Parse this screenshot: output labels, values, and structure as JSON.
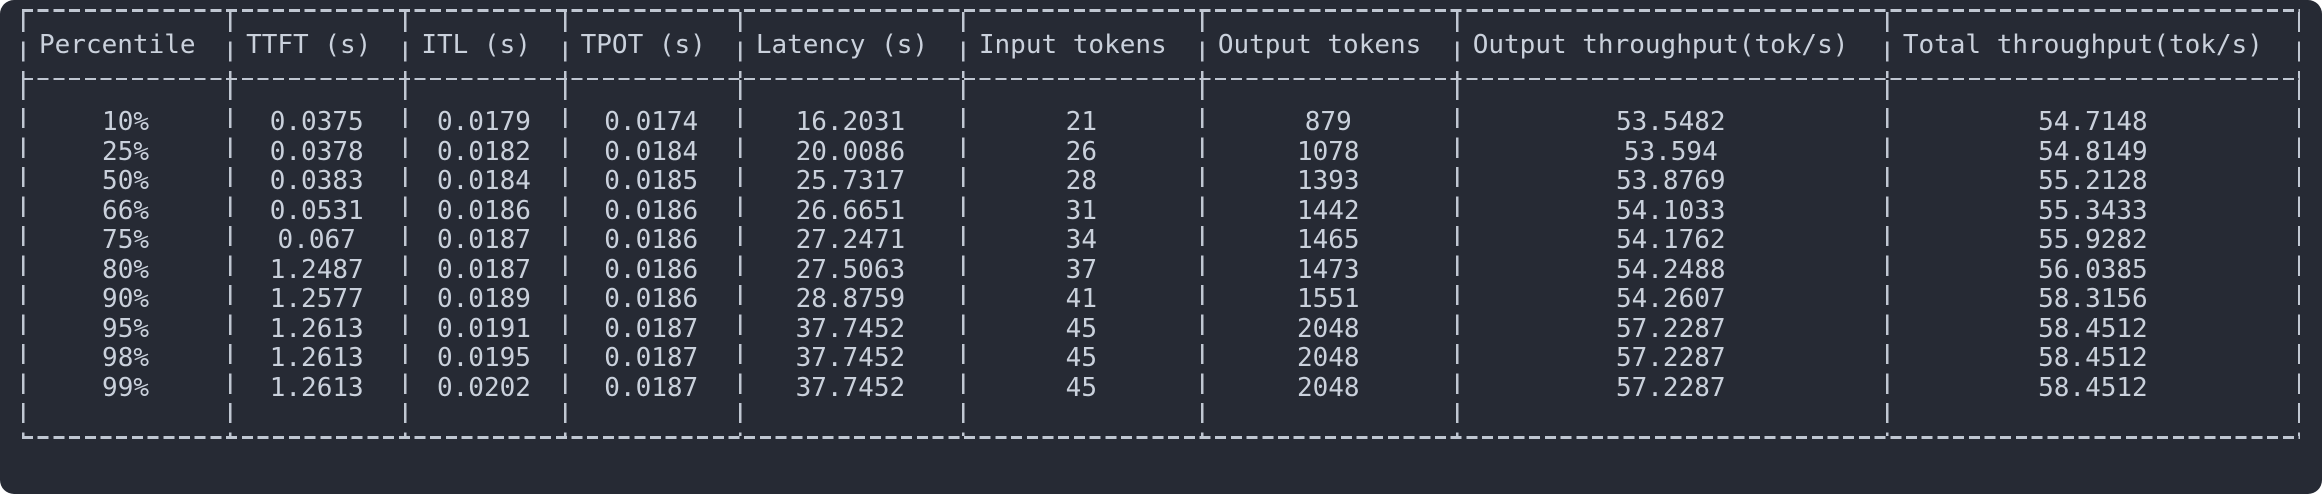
{
  "window": {
    "background_color": "#262a34",
    "line_color": "#c0c7d2",
    "text_color": "#cad1dc"
  },
  "table": {
    "columns": [
      "Percentile",
      "TTFT (s)",
      "ITL (s)",
      "TPOT (s)",
      "Latency (s)",
      "Input tokens",
      "Output tokens",
      "Output throughput(tok/s)",
      "Total throughput(tok/s)"
    ],
    "rows": [
      [
        "10%",
        "0.0375",
        "0.0179",
        "0.0174",
        "16.2031",
        "21",
        "879",
        "53.5482",
        "54.7148"
      ],
      [
        "25%",
        "0.0378",
        "0.0182",
        "0.0184",
        "20.0086",
        "26",
        "1078",
        "53.594",
        "54.8149"
      ],
      [
        "50%",
        "0.0383",
        "0.0184",
        "0.0185",
        "25.7317",
        "28",
        "1393",
        "53.8769",
        "55.2128"
      ],
      [
        "66%",
        "0.0531",
        "0.0186",
        "0.0186",
        "26.6651",
        "31",
        "1442",
        "54.1033",
        "55.3433"
      ],
      [
        "75%",
        "0.067",
        "0.0187",
        "0.0186",
        "27.2471",
        "34",
        "1465",
        "54.1762",
        "55.9282"
      ],
      [
        "80%",
        "1.2487",
        "0.0187",
        "0.0186",
        "27.5063",
        "37",
        "1473",
        "54.2488",
        "56.0385"
      ],
      [
        "90%",
        "1.2577",
        "0.0189",
        "0.0186",
        "28.8759",
        "41",
        "1551",
        "54.2607",
        "58.3156"
      ],
      [
        "95%",
        "1.2613",
        "0.0191",
        "0.0187",
        "37.7452",
        "45",
        "2048",
        "57.2287",
        "58.4512"
      ],
      [
        "98%",
        "1.2613",
        "0.0195",
        "0.0187",
        "37.7452",
        "45",
        "2048",
        "57.2287",
        "58.4512"
      ],
      [
        "99%",
        "1.2613",
        "0.0202",
        "0.0187",
        "37.7452",
        "45",
        "2048",
        "57.2287",
        "58.4512"
      ]
    ]
  }
}
